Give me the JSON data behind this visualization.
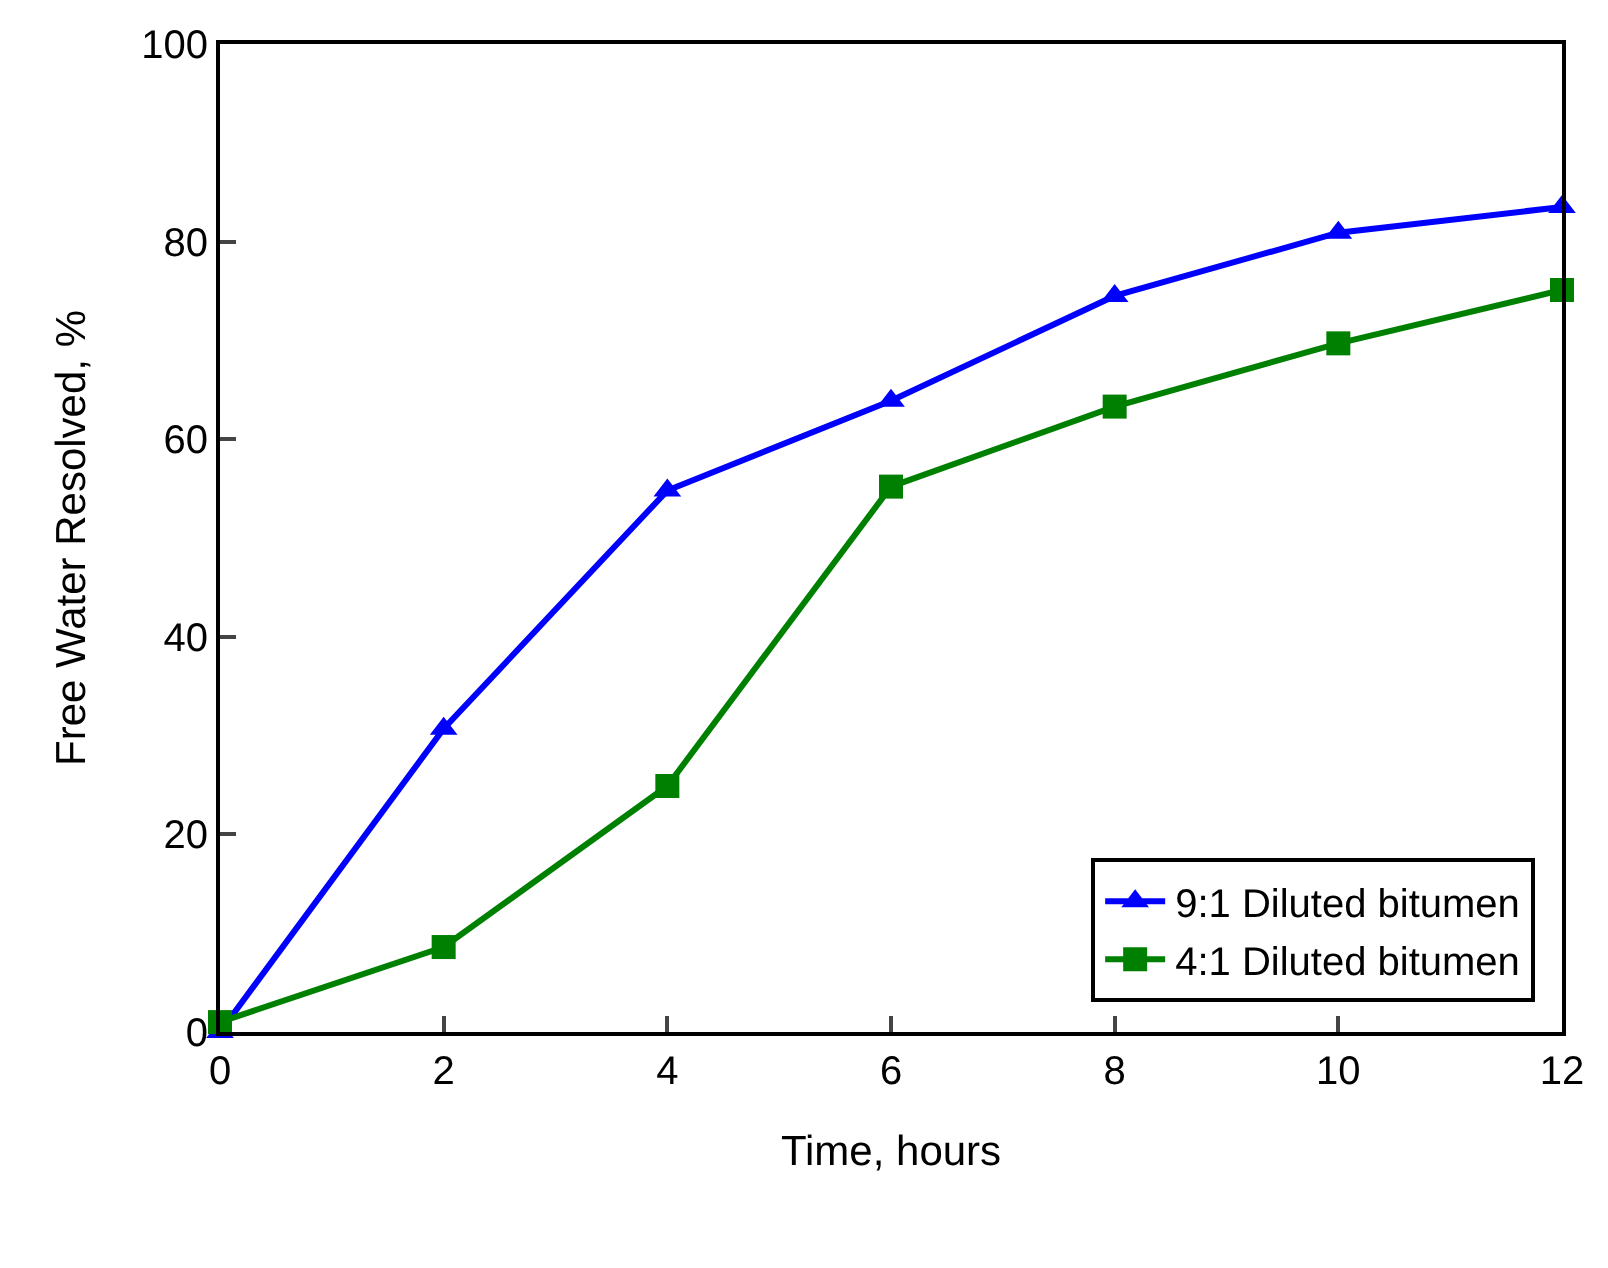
{
  "chart_data": {
    "type": "line",
    "xlabel": "Time, hours",
    "ylabel": "Free Water Resolved, %",
    "x": [
      0,
      2,
      4,
      6,
      8,
      10,
      12
    ],
    "series": [
      {
        "name": "9:1 Diluted bitumen",
        "color": "#0000ff",
        "marker": "triangle",
        "values": [
          0,
          30.7,
          54.8,
          63.9,
          74.5,
          80.9,
          83.5
        ]
      },
      {
        "name": "4:1 Diluted bitumen",
        "color": "#008000",
        "marker": "square",
        "values": [
          1,
          8.6,
          24.9,
          55.2,
          63.3,
          69.7,
          75.1
        ]
      }
    ],
    "xlim": [
      0,
      12
    ],
    "xticks": [
      0,
      2,
      4,
      6,
      8,
      10,
      12
    ],
    "ylim": [
      0,
      100
    ],
    "yticks": [
      0,
      20,
      40,
      60,
      80,
      100
    ],
    "grid": false,
    "legend": "bottom right",
    "line_style": "solid"
  }
}
